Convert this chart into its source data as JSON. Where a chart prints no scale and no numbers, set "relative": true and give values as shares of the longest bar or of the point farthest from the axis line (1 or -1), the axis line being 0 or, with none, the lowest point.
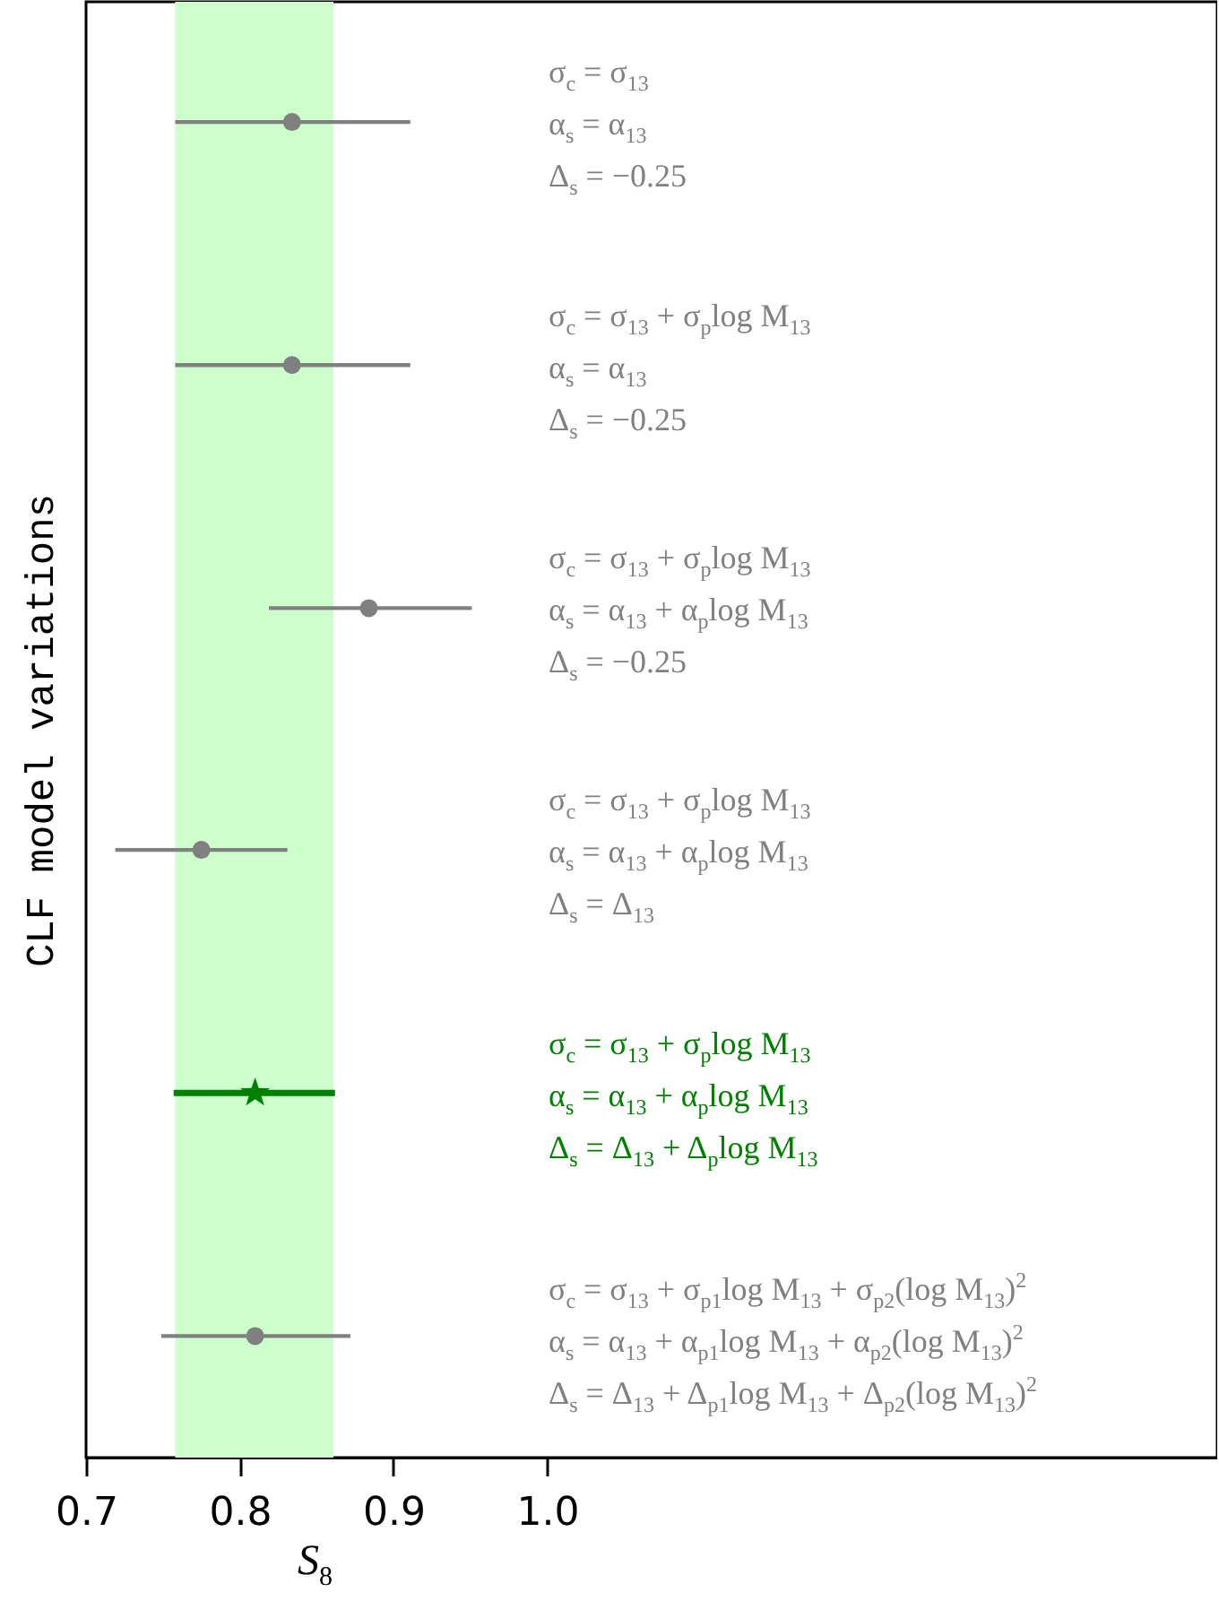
{
  "chart_data": {
    "type": "scatter",
    "relative": true,
    "xlabel": "S$_{8}$",
    "ylabel": "CLF model variations",
    "xlim": [
      0.7,
      1.436
    ],
    "xticks": [
      0.7,
      0.8,
      0.9,
      {
        "value": 1.0,
        "label": "1.0"
      }
    ],
    "series": [
      {
        "color": "#808080",
        "marker": "circle",
        "x": [
          0.834,
          0.834,
          0.884,
          0.775,
          0.81
        ],
        "values": [
          1,
          0.818,
          0.636,
          0.455,
          0.091
        ],
        "xerrors": [
          [
            0.758,
            0.911
          ],
          [
            0.758,
            0.911
          ],
          [
            0.819,
            0.951
          ],
          [
            0.719,
            0.831
          ],
          [
            0.749,
            0.872
          ]
        ]
      },
      {
        "color": "#008000",
        "marker": "star",
        "x": [
          0.81
        ],
        "values": [
          0.273
        ],
        "xerrors": [
          [
            0.757,
            0.862
          ]
        ]
      }
    ],
    "bands": [
      {
        "axis": "x",
        "from": 0.758,
        "to": 0.861,
        "color": "#ccffcc"
      }
    ],
    "annotations": [
      "σ$_{c}$ = σ$_{13}$",
      "α$_{s}$ = α$_{13}$",
      "Δ$_{s}$ = −0.25",
      "σ$_{c}$ = σ$_{13}$ + σ$_{p}$log M$_{13}$",
      "α$_{s}$ = α$_{13}$",
      "Δ$_{s}$ = −0.25",
      "σ$_{c}$ = σ$_{13}$ + σ$_{p}$log M$_{13}$",
      "α$_{s}$ = α$_{13}$ + α$_{p}$log M$_{13}$",
      "Δ$_{s}$ = −0.25",
      "σ$_{c}$ = σ$_{13}$ + σ$_{p}$log M$_{13}$",
      "α$_{s}$ = α$_{13}$ + α$_{p}$log M$_{13}$",
      "Δ$_{s}$ = Δ$_{13}$",
      "σ$_{c}$ = σ$_{13}$ + σ$_{p}$log M$_{13}$",
      "α$_{s}$ = α$_{13}$ + α$_{p}$log M$_{13}$",
      "Δ$_{s}$ = Δ$_{13}$ + Δ$_{p}$log M$_{13}$",
      "σ$_{c}$ = σ$_{13}$ + σ$_{p1}$log M$_{13}$ + σ$_{p2}$(log M$_{13}$)$^{2}$",
      "α$_{s}$ = α$_{13}$ + α$_{p1}$log M$_{13}$ + α$_{p2}$(log M$_{13}$)$^{2}$",
      "Δ$_{s}$ = Δ$_{13}$ + Δ$_{p1}$log M$_{13}$ + Δ$_{p2}$(log M$_{13}$)$^{2}$"
    ]
  }
}
